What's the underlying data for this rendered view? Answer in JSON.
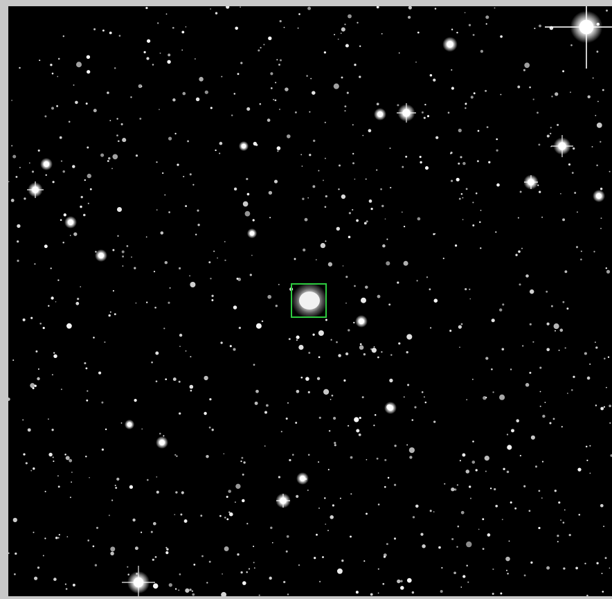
{
  "image": {
    "subject": "star field",
    "panel_background": "#c8c8c8",
    "sky_color": "#000000",
    "star_color": "#ffffff"
  },
  "selection": {
    "shape": "rectangle",
    "color": "#2ecc40"
  }
}
